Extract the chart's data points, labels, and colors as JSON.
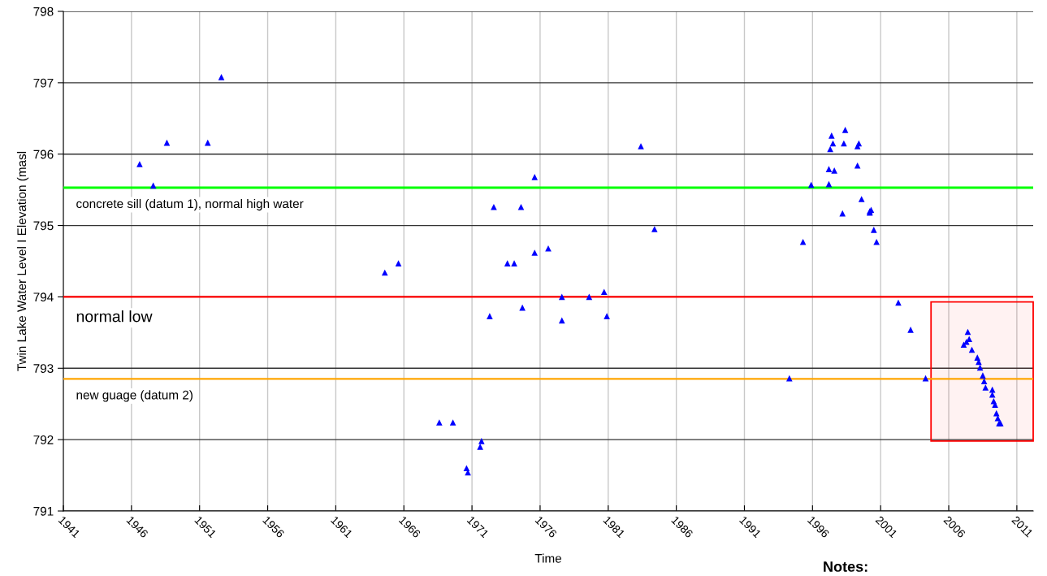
{
  "chart_data": {
    "type": "scatter",
    "ylabel": "Twin Lake Water Level I Elevation (masl",
    "xlabel": "Time",
    "x": [
      1946.6,
      1947.6,
      1948.6,
      1951.6,
      1952.6,
      1964.6,
      1965.6,
      1968.6,
      1969.6,
      1970.6,
      1970.7,
      1971.7,
      1971.6,
      1972.3,
      1972.6,
      1973.6,
      1974.1,
      1974.6,
      1974.7,
      1975.6,
      1975.6,
      1976.6,
      1977.6,
      1977.6,
      1979.6,
      1980.7,
      1980.9,
      1983.4,
      1984.4,
      1994.3,
      1995.3,
      1995.9,
      1997.2,
      1997.2,
      1997.4,
      1997.5,
      1997.3,
      1997.6,
      1998.2,
      1998.3,
      1998.4,
      1999.3,
      1999.3,
      1999.4,
      1999.6,
      2000.2,
      2000.3,
      2000.2,
      2000.5,
      2000.7,
      2002.3,
      2003.2,
      2004.3,
      2007.4,
      2007.5,
      2007.1,
      2007.3,
      2007.7,
      2008.1,
      2008.2,
      2008.3,
      2008.5,
      2008.6,
      2008.7,
      2009.2,
      2009.2,
      2009.3,
      2009.4,
      2009.5,
      2009.6,
      2009.7,
      2009.8
    ],
    "series": [
      {
        "color": "#0000ff",
        "values": [
          795.86,
          795.56,
          796.16,
          796.16,
          797.08,
          794.34,
          794.47,
          792.24,
          792.24,
          791.6,
          791.54,
          791.98,
          791.9,
          793.73,
          795.26,
          794.47,
          794.47,
          795.26,
          793.85,
          795.68,
          794.62,
          794.68,
          794.0,
          793.67,
          794.0,
          794.07,
          793.73,
          796.11,
          794.95,
          792.86,
          794.77,
          795.57,
          795.79,
          795.58,
          796.26,
          796.15,
          796.07,
          795.77,
          795.17,
          796.15,
          796.34,
          795.84,
          796.11,
          796.15,
          795.37,
          795.2,
          795.22,
          795.18,
          794.94,
          794.77,
          793.92,
          793.54,
          792.86,
          793.51,
          793.41,
          793.33,
          793.37,
          793.26,
          793.15,
          793.09,
          793.01,
          792.9,
          792.82,
          792.73,
          792.7,
          792.63,
          792.54,
          792.49,
          792.37,
          792.3,
          792.23,
          792.23
        ]
      }
    ],
    "marker": "triangle",
    "xlim": [
      1941,
      2012.2
    ],
    "xticks": [
      1941,
      1946,
      1951,
      1956,
      1961,
      1966,
      1971,
      1976,
      1981,
      1986,
      1991,
      1996,
      2001,
      2006,
      2011
    ],
    "ylim": [
      791,
      798
    ],
    "yticks": [
      791,
      792,
      793,
      794,
      795,
      796,
      797,
      798
    ],
    "grid": true,
    "ref_lines": [
      {
        "axis": "y",
        "value": 795.53,
        "label": "concrete sill (datum 1), normal high water",
        "color": "#00ff00"
      },
      {
        "axis": "y",
        "value": 794.0,
        "label": "normal low",
        "color": "#ff0000"
      },
      {
        "axis": "y",
        "value": 792.85,
        "label": "new guage (datum 2)",
        "color": "#ffa500"
      }
    ],
    "bands": [
      {
        "axis": "x",
        "from": 2004.7,
        "to": 2012.2,
        "color": "#ff0000"
      }
    ],
    "annotations": [
      "Notes:"
    ]
  }
}
